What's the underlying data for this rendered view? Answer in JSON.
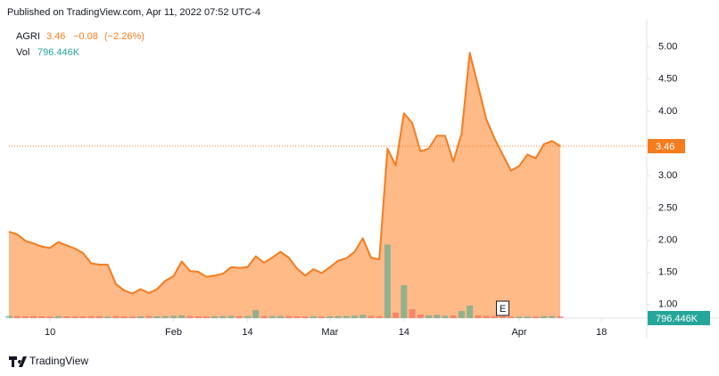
{
  "header": "Published on TradingView.com, Apr 11, 2022 07:52 UTC-4",
  "footer": "TradingView",
  "chart_data": {
    "type": "area",
    "symbol": "AGRI",
    "change": "−0.08",
    "change_percent": "(−2.26%)",
    "line_color": "#f57c1f",
    "area_color": "#ffb27a",
    "x": [
      0,
      1,
      2,
      3,
      4,
      5,
      6,
      7,
      8,
      9,
      10,
      11,
      12,
      13,
      14,
      15,
      16,
      17,
      18,
      19,
      20,
      21,
      22,
      23,
      24,
      25,
      26,
      27,
      28,
      29,
      30,
      31,
      32,
      33,
      34,
      35,
      36,
      37,
      38,
      39,
      40,
      41,
      42,
      43,
      44,
      45,
      46,
      47,
      48,
      49,
      50,
      51,
      52,
      53,
      54,
      55,
      56,
      57,
      58,
      59,
      60,
      61,
      62,
      63,
      64,
      65,
      66,
      67
    ],
    "series": [
      {
        "name": "AGRI",
        "color": "#f57c1f",
        "values": [
          2.13,
          2.09,
          1.99,
          1.95,
          1.9,
          1.88,
          1.97,
          1.92,
          1.87,
          1.8,
          1.64,
          1.62,
          1.62,
          1.32,
          1.22,
          1.17,
          1.24,
          1.18,
          1.24,
          1.37,
          1.44,
          1.67,
          1.52,
          1.51,
          1.43,
          1.45,
          1.48,
          1.58,
          1.57,
          1.58,
          1.75,
          1.65,
          1.73,
          1.82,
          1.73,
          1.56,
          1.45,
          1.55,
          1.49,
          1.58,
          1.68,
          1.72,
          1.82,
          2.03,
          1.73,
          1.7,
          3.42,
          3.16,
          3.97,
          3.82,
          3.38,
          3.42,
          3.62,
          3.62,
          3.22,
          3.65,
          4.91,
          4.4,
          3.88,
          3.58,
          3.33,
          3.08,
          3.15,
          3.33,
          3.27,
          3.49,
          3.54,
          3.46
        ]
      }
    ],
    "volume": {
      "name": "Vol",
      "color": "#26a69a",
      "up_color": "#26a69a",
      "down_color": "#ef5350",
      "values": [
        1000000,
        900000,
        800000,
        900000,
        800000,
        700000,
        900000,
        800000,
        700000,
        800000,
        900000,
        800000,
        700000,
        900000,
        800000,
        700000,
        800000,
        900000,
        800000,
        900000,
        1000000,
        1200000,
        900000,
        800000,
        700000,
        800000,
        900000,
        1000000,
        800000,
        900000,
        3600000,
        1000000,
        900000,
        1000000,
        900000,
        800000,
        700000,
        800000,
        700000,
        800000,
        900000,
        900000,
        1100000,
        1500000,
        1000000,
        900000,
        33000000,
        2400000,
        14800000,
        4000000,
        1600000,
        1200000,
        1400000,
        1000000,
        1200000,
        3200000,
        5600000,
        1200000,
        1000000,
        900000,
        800000,
        700000,
        700000,
        800000,
        700000,
        900000,
        900000,
        796446
      ],
      "last_label": "796.446K",
      "vlim": [
        0,
        135600000
      ]
    },
    "xlim": [
      0,
      77.5
    ],
    "xticks": [
      {
        "value": 5,
        "label": "10"
      },
      {
        "value": 20,
        "label": "Feb"
      },
      {
        "value": 29,
        "label": "14"
      },
      {
        "value": 39,
        "label": "Mar"
      },
      {
        "value": 48,
        "label": "14"
      },
      {
        "value": 62,
        "label": "Apr"
      },
      {
        "value": 72,
        "label": "18"
      }
    ],
    "ylim": [
      0.79,
      5.48
    ],
    "yticks": [
      {
        "value": 1,
        "label": "1.00"
      },
      {
        "value": 1.5,
        "label": "1.50"
      },
      {
        "value": 2,
        "label": "2.00"
      },
      {
        "value": 2.5,
        "label": "2.50"
      },
      {
        "value": 3,
        "label": "3.00"
      },
      {
        "value": 3.5,
        "label": "3.50"
      },
      {
        "value": 4,
        "label": "4.00"
      },
      {
        "value": 4.5,
        "label": "4.50"
      },
      {
        "value": 5,
        "label": "5.00"
      }
    ],
    "grid": false,
    "earnings_marker": {
      "x": 60,
      "label": "E"
    }
  }
}
